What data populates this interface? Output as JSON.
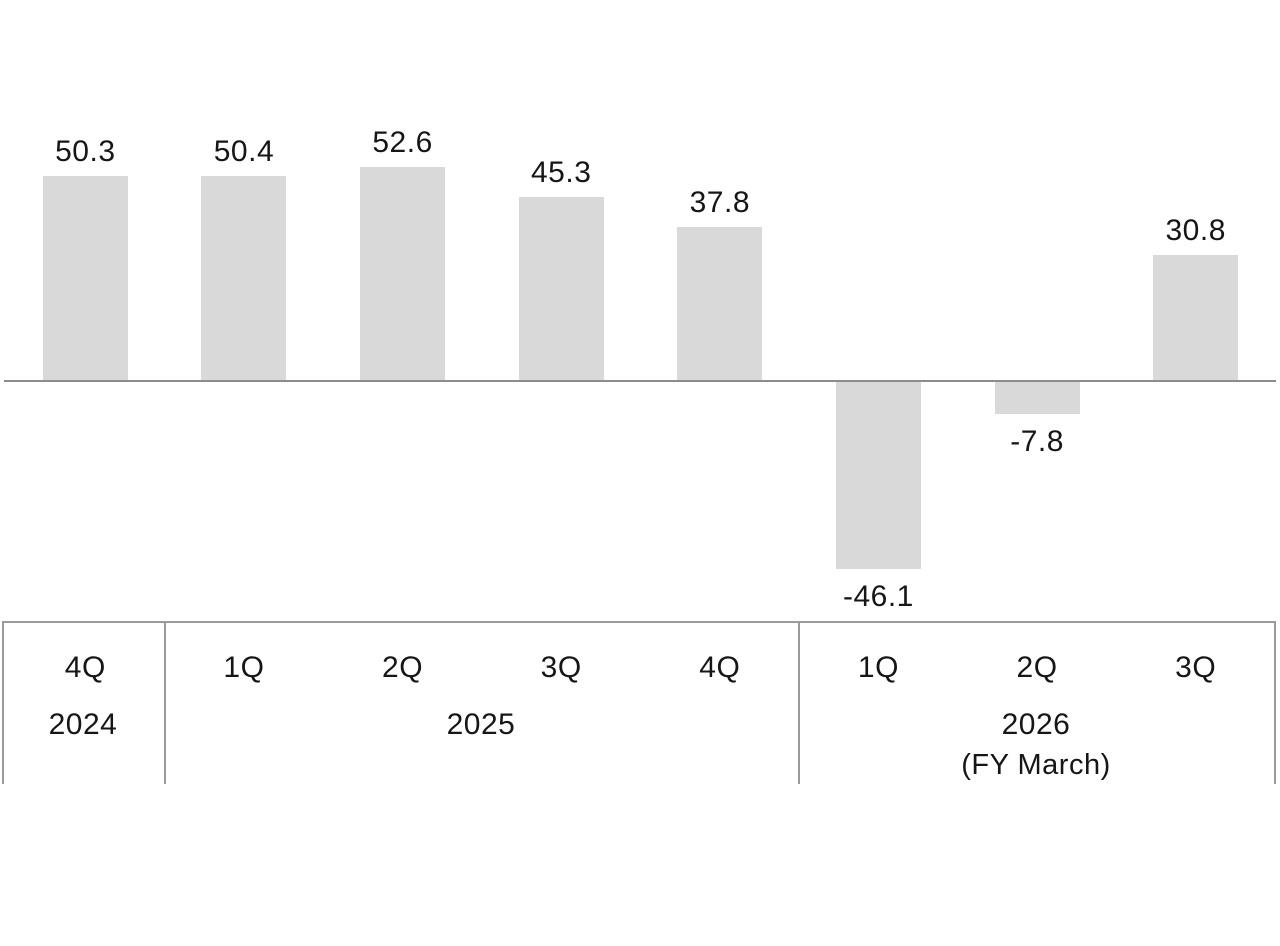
{
  "chart_data": {
    "type": "bar",
    "title": "",
    "xlabel": "",
    "ylabel": "",
    "categories": [
      "4Q 2024",
      "1Q 2025",
      "2Q 2025",
      "3Q 2025",
      "4Q 2025",
      "1Q 2026",
      "2Q 2026",
      "3Q 2026"
    ],
    "quarter_labels": [
      "4Q",
      "1Q",
      "2Q",
      "3Q",
      "4Q",
      "1Q",
      "2Q",
      "3Q"
    ],
    "values": [
      50.3,
      50.4,
      52.6,
      45.3,
      37.8,
      -46.1,
      -7.8,
      30.8
    ],
    "value_labels": [
      "50.3",
      "50.4",
      "52.6",
      "45.3",
      "37.8",
      "-46.1",
      "-7.8",
      "30.8"
    ],
    "year_groups": [
      {
        "label": "2024",
        "note": "",
        "span": 1
      },
      {
        "label": "2025",
        "note": "",
        "span": 4
      },
      {
        "label": "2026",
        "note": "(FY March)",
        "span": 3
      }
    ],
    "ylim": [
      -60,
      60
    ],
    "grid": false,
    "legend": "none",
    "colors": {
      "bar": "#d9d9d9",
      "axis_line": "#8c8c8c",
      "table_line": "#9b9b9b",
      "text": "#161616",
      "background": "#ffffff"
    }
  }
}
